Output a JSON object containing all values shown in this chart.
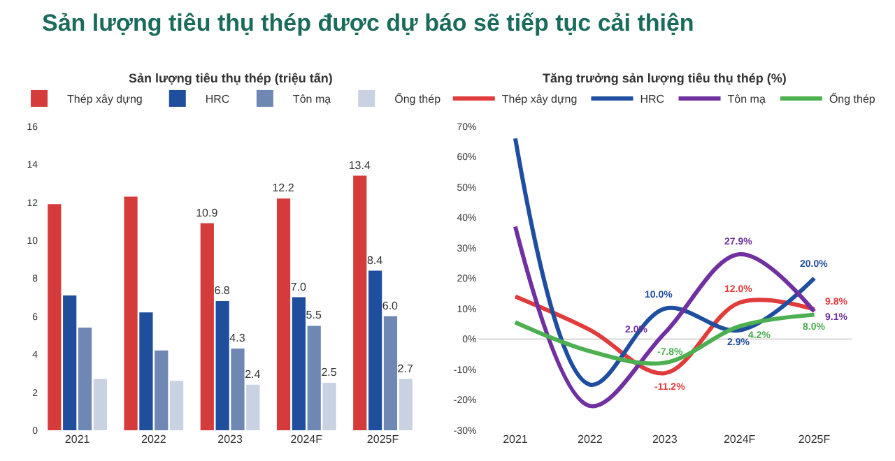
{
  "chart_data": [
    {
      "type": "bar",
      "title": "Sản lượng tiêu thụ thép được dự báo sẽ tiếp tục cải thiện",
      "subtitle": "Sản lượng tiêu thụ thép (triệu tấn)",
      "categories": [
        "2021",
        "2022",
        "2023",
        "2024F",
        "2025F"
      ],
      "series": [
        {
          "name": "Thép xây dựng",
          "color": "#d63b3b",
          "values": [
            11.9,
            12.3,
            10.9,
            12.2,
            13.4
          ],
          "value_labels": [
            null,
            null,
            "10.9",
            "12.2",
            "13.4"
          ]
        },
        {
          "name": "HRC",
          "color": "#1f4e9c",
          "values": [
            7.1,
            6.2,
            6.8,
            7.0,
            8.4
          ],
          "value_labels": [
            null,
            null,
            "6.8",
            "7.0",
            "8.4"
          ]
        },
        {
          "name": "Tôn mạ",
          "color": "#6f88b3",
          "values": [
            5.4,
            4.2,
            4.3,
            5.5,
            6.0
          ],
          "value_labels": [
            null,
            null,
            "4.3",
            "5.5",
            "6.0"
          ]
        },
        {
          "name": "Ống thép",
          "color": "#c8d2e3",
          "values": [
            2.7,
            2.6,
            2.4,
            2.5,
            2.7
          ],
          "value_labels": [
            null,
            null,
            "2.4",
            "2.5",
            "2.7"
          ]
        }
      ],
      "ylim": [
        0,
        16
      ],
      "yticks": [
        0,
        2,
        4,
        6,
        8,
        10,
        12,
        14,
        16
      ],
      "grid": false,
      "legend": "top"
    },
    {
      "type": "line",
      "subtitle": "Tăng trưởng sản lượng tiêu thụ thép (%)",
      "categories": [
        "2021",
        "2022",
        "2023",
        "2024F",
        "2025F"
      ],
      "series": [
        {
          "name": "Thép xây dựng",
          "color": "#e03c3c",
          "values": [
            14,
            3,
            -11.2,
            12.0,
            9.8
          ],
          "value_labels": [
            null,
            null,
            "-11.2%",
            "12.0%",
            "9.8%"
          ]
        },
        {
          "name": "HRC",
          "color": "#1f4ea0",
          "values": [
            66,
            -15,
            10.0,
            2.9,
            20.0
          ],
          "value_labels": [
            null,
            null,
            "10.0%",
            "2.9%",
            "20.0%"
          ]
        },
        {
          "name": "Tôn mạ",
          "color": "#7030a0",
          "values": [
            37,
            -22,
            2.0,
            27.9,
            9.1
          ],
          "value_labels": [
            null,
            null,
            "2.0%",
            "27.9%",
            "9.1%"
          ]
        },
        {
          "name": "Ống thép",
          "color": "#4caf50",
          "values": [
            5.5,
            -4,
            -7.8,
            4.2,
            8.0
          ],
          "value_labels": [
            null,
            null,
            "-7.8%",
            "4.2%",
            "8.0%"
          ]
        }
      ],
      "ylim": [
        -30,
        70
      ],
      "yticks": [
        {
          "value": -30,
          "label": "-30%"
        },
        {
          "value": -20,
          "label": "-20%"
        },
        {
          "value": -10,
          "label": "-10%"
        },
        {
          "value": 0,
          "label": "0%"
        },
        {
          "value": 10,
          "label": "10%"
        },
        {
          "value": 20,
          "label": "20%"
        },
        {
          "value": 30,
          "label": "30%"
        },
        {
          "value": 40,
          "label": "40%"
        },
        {
          "value": 50,
          "label": "50%"
        },
        {
          "value": 60,
          "label": "60%"
        },
        {
          "value": 70,
          "label": "70%"
        }
      ],
      "ref_lines": [
        {
          "axis": "y",
          "value": 0,
          "color": "#d9d9d9"
        }
      ],
      "grid": false,
      "legend": "top",
      "line_style": "solid",
      "marker": "none"
    }
  ]
}
